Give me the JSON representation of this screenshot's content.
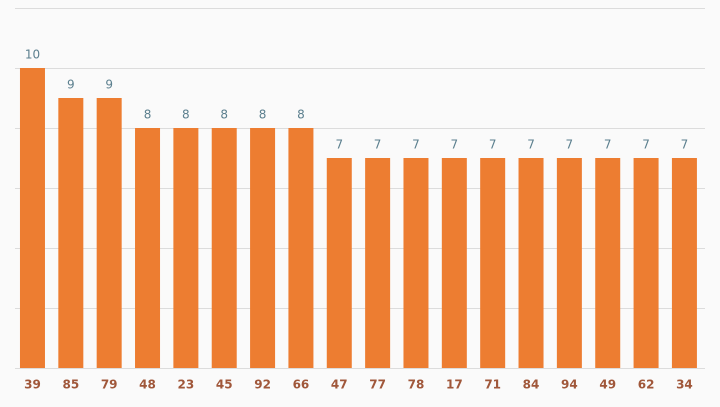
{
  "chart_data": {
    "type": "bar",
    "categories": [
      "39",
      "85",
      "79",
      "48",
      "23",
      "45",
      "92",
      "66",
      "47",
      "77",
      "78",
      "17",
      "71",
      "84",
      "94",
      "49",
      "62",
      "34"
    ],
    "values": [
      10,
      9,
      9,
      8,
      8,
      8,
      8,
      8,
      7,
      7,
      7,
      7,
      7,
      7,
      7,
      7,
      7,
      7
    ],
    "color": "#ed7d31",
    "ylim": [
      0,
      12
    ],
    "yticks": [
      0,
      2,
      4,
      6,
      8,
      10,
      12
    ],
    "grid": true
  }
}
